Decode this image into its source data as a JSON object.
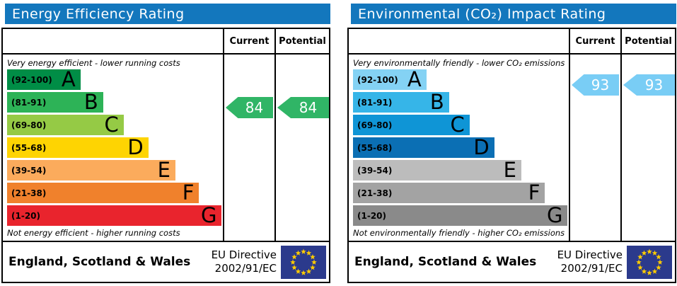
{
  "colors": {
    "header_blue": "#1377bd",
    "eu_flag_blue": "#2b3a8c",
    "eu_star_yellow": "#ffcc00",
    "border": "#000000"
  },
  "panels": [
    {
      "title": "Energy Efficiency Rating",
      "columns": {
        "current": "Current",
        "potential": "Potential"
      },
      "top_caption": "Very energy efficient - lower running costs",
      "bottom_caption": "Not energy efficient - higher running costs",
      "bands": [
        {
          "range": "(92-100)",
          "letter": "A",
          "color": "#008d46",
          "width_pct": 34
        },
        {
          "range": "(81-91)",
          "letter": "B",
          "color": "#2db357",
          "width_pct": 44.5
        },
        {
          "range": "(69-80)",
          "letter": "C",
          "color": "#95ca45",
          "width_pct": 54
        },
        {
          "range": "(55-68)",
          "letter": "D",
          "color": "#fed402",
          "width_pct": 65.5
        },
        {
          "range": "(39-54)",
          "letter": "E",
          "color": "#fbab5c",
          "width_pct": 78
        },
        {
          "range": "(21-38)",
          "letter": "F",
          "color": "#f0812c",
          "width_pct": 89
        },
        {
          "range": "(1-20)",
          "letter": "G",
          "color": "#e9242d",
          "width_pct": 99.5
        }
      ],
      "current": {
        "value": "84",
        "band_index": 1,
        "color": "#30b566"
      },
      "potential": {
        "value": "84",
        "band_index": 1,
        "color": "#30b566"
      },
      "footer": {
        "region": "England, Scotland & Wales",
        "directive_line1": "EU Directive",
        "directive_line2": "2002/91/EC"
      }
    },
    {
      "title": "Environmental (CO₂) Impact Rating",
      "columns": {
        "current": "Current",
        "potential": "Potential"
      },
      "top_caption": "Very environmentally friendly - lower CO₂ emissions",
      "bottom_caption": "Not environmentally friendly - higher CO₂ emissions",
      "bands": [
        {
          "range": "(92-100)",
          "letter": "A",
          "color": "#84d2f4",
          "width_pct": 34
        },
        {
          "range": "(81-91)",
          "letter": "B",
          "color": "#36b5e8",
          "width_pct": 44.5
        },
        {
          "range": "(69-80)",
          "letter": "C",
          "color": "#0f95d6",
          "width_pct": 54
        },
        {
          "range": "(55-68)",
          "letter": "D",
          "color": "#0b6fb4",
          "width_pct": 65.5
        },
        {
          "range": "(39-54)",
          "letter": "E",
          "color": "#bcbcbc",
          "width_pct": 78
        },
        {
          "range": "(21-38)",
          "letter": "F",
          "color": "#a3a3a3",
          "width_pct": 89
        },
        {
          "range": "(1-20)",
          "letter": "G",
          "color": "#8a8a8a",
          "width_pct": 99.5
        }
      ],
      "current": {
        "value": "93",
        "band_index": 0,
        "color": "#79cdf5"
      },
      "potential": {
        "value": "93",
        "band_index": 0,
        "color": "#79cdf5"
      },
      "footer": {
        "region": "England, Scotland & Wales",
        "directive_line1": "EU Directive",
        "directive_line2": "2002/91/EC"
      }
    }
  ],
  "chart_data": [
    {
      "type": "bar",
      "orientation": "horizontal",
      "title": "Energy Efficiency Rating",
      "categories": [
        "A (92-100)",
        "B (81-91)",
        "C (69-80)",
        "D (55-68)",
        "E (39-54)",
        "F (21-38)",
        "G (1-20)"
      ],
      "values": [
        34,
        44.5,
        54,
        65.5,
        78,
        89,
        99.5
      ],
      "value_unit": "bar length, % of column width",
      "band_colors": [
        "#008d46",
        "#2db357",
        "#95ca45",
        "#fed402",
        "#fbab5c",
        "#f0812c",
        "#e9242d"
      ],
      "current_rating": 84,
      "potential_rating": 84,
      "current_band": "B",
      "potential_band": "B",
      "columns": [
        "Current",
        "Potential"
      ],
      "top_label": "Very energy efficient - lower running costs",
      "bottom_label": "Not energy efficient - higher running costs",
      "footer": "England, Scotland & Wales · EU Directive 2002/91/EC"
    },
    {
      "type": "bar",
      "orientation": "horizontal",
      "title": "Environmental (CO₂) Impact Rating",
      "categories": [
        "A (92-100)",
        "B (81-91)",
        "C (69-80)",
        "D (55-68)",
        "E (39-54)",
        "F (21-38)",
        "G (1-20)"
      ],
      "values": [
        34,
        44.5,
        54,
        65.5,
        78,
        89,
        99.5
      ],
      "value_unit": "bar length, % of column width",
      "band_colors": [
        "#84d2f4",
        "#36b5e8",
        "#0f95d6",
        "#0b6fb4",
        "#bcbcbc",
        "#a3a3a3",
        "#8a8a8a"
      ],
      "current_rating": 93,
      "potential_rating": 93,
      "current_band": "A",
      "potential_band": "A",
      "columns": [
        "Current",
        "Potential"
      ],
      "top_label": "Very environmentally friendly - lower CO₂ emissions",
      "bottom_label": "Not environmentally friendly - higher CO₂ emissions",
      "footer": "England, Scotland & Wales · EU Directive 2002/91/EC"
    }
  ]
}
